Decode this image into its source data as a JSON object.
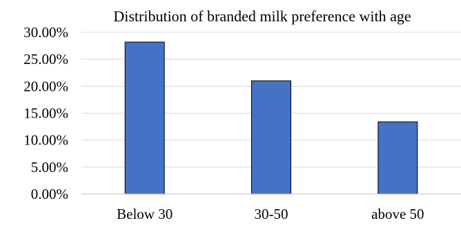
{
  "chart_data": {
    "type": "bar",
    "title": "Distribution of branded  milk preference with age",
    "xlabel": "",
    "ylabel": "",
    "categories": [
      "Below 30",
      "30-50",
      "above 50"
    ],
    "series": [
      {
        "values": [
          28.2,
          21.0,
          13.4
        ]
      }
    ],
    "ylim": [
      0,
      30
    ],
    "yticks": [
      0,
      5,
      10,
      15,
      20,
      25,
      30
    ],
    "ytick_labels": [
      "0.00%",
      "5.00%",
      "10.00%",
      "15.00%",
      "20.00%",
      "25.00%",
      "30.00%"
    ],
    "grid": true,
    "legend": "none",
    "colors": {
      "bar": "#4472c4",
      "bar_border": "#000000",
      "grid": "#d9d9d9"
    }
  }
}
